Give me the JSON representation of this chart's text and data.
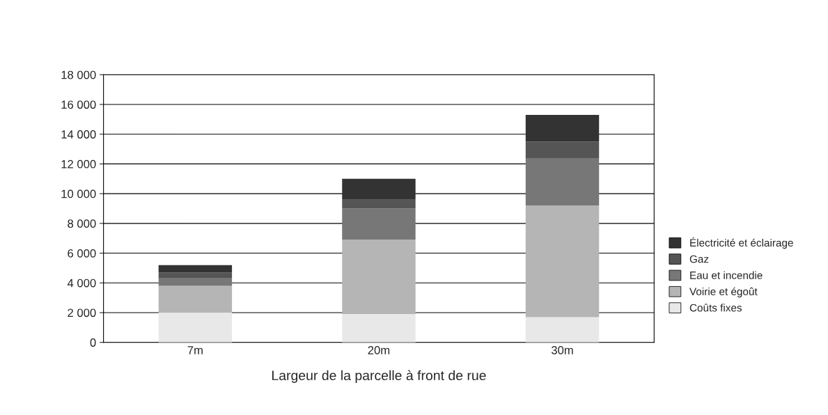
{
  "chart_data": {
    "type": "bar",
    "stacked": true,
    "xlabel": "Largeur de la parcelle à front de rue",
    "categories": [
      "7m",
      "20m",
      "30m"
    ],
    "series": [
      {
        "name": "Coûts fixes",
        "color": "#e8e8e8",
        "values": [
          2000,
          1900,
          1700
        ]
      },
      {
        "name": "Voirie et égoût",
        "color": "#b5b5b5",
        "values": [
          1800,
          5000,
          7500
        ]
      },
      {
        "name": "Eau et incendie",
        "color": "#777777",
        "values": [
          500,
          2100,
          3200
        ]
      },
      {
        "name": "Gaz",
        "color": "#555555",
        "values": [
          400,
          600,
          1100
        ]
      },
      {
        "name": "Électricité et éclairage",
        "color": "#333333",
        "values": [
          500,
          1400,
          1800
        ]
      }
    ],
    "ylim": [
      0,
      18000
    ],
    "yticks": [
      0,
      {
        "value": 2000,
        "label": "2 000"
      },
      {
        "value": 4000,
        "label": "4 000"
      },
      {
        "value": 6000,
        "label": "6 000"
      },
      {
        "value": 8000,
        "label": "8 000"
      },
      {
        "value": 10000,
        "label": "10 000"
      },
      {
        "value": 12000,
        "label": "12 000"
      },
      {
        "value": 14000,
        "label": "14 000"
      },
      {
        "value": 16000,
        "label": "16 000"
      },
      {
        "value": 18000,
        "label": "18 000"
      }
    ],
    "grid": "y",
    "legend": "right"
  }
}
